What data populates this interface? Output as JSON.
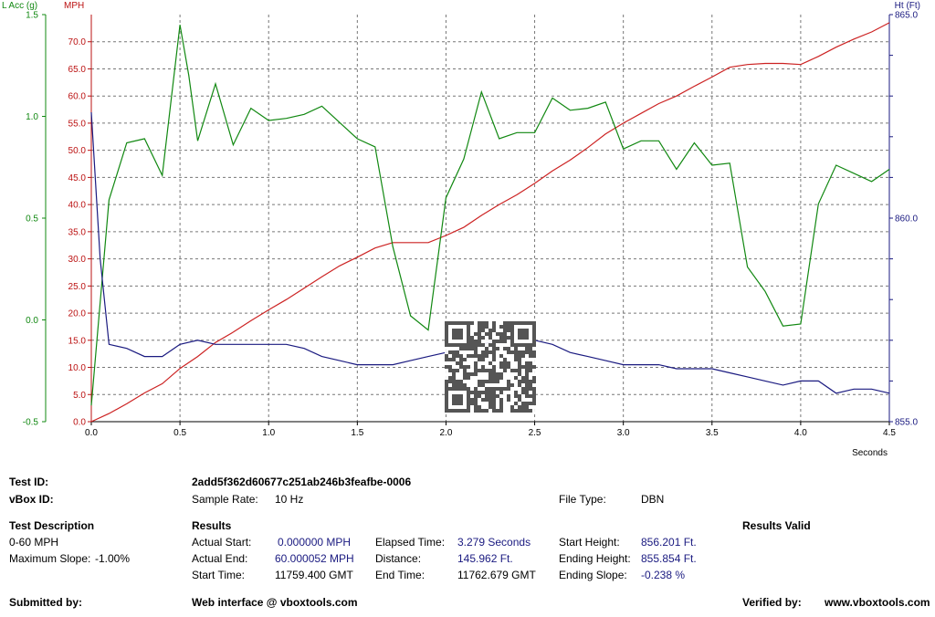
{
  "chart_data": {
    "type": "line",
    "x_label": "Seconds",
    "x_range": [
      0,
      4.5
    ],
    "x_ticks": [
      "0.0",
      "0.5",
      "1.0",
      "1.5",
      "2.0",
      "2.5",
      "3.0",
      "3.5",
      "4.0",
      "4.5"
    ],
    "left_axis_acc": {
      "label": "L Acc (g)",
      "color": "#118811",
      "range": [
        -0.5,
        1.5
      ],
      "ticks": [
        "-0.5",
        "0.0",
        "0.5",
        "1.0",
        "1.5"
      ]
    },
    "left_axis_mph": {
      "label": "MPH",
      "color": "#bb1111",
      "range": [
        0,
        75
      ],
      "ticks": [
        "0.0",
        "5.0",
        "10.0",
        "15.0",
        "20.0",
        "25.0",
        "30.0",
        "35.0",
        "40.0",
        "45.0",
        "50.0",
        "55.0",
        "60.0",
        "65.0",
        "70.0"
      ]
    },
    "right_axis_ht": {
      "label": "Ht (Ft)",
      "color": "#1a1a80",
      "range": [
        855.0,
        865.0
      ],
      "ticks": [
        "855.0",
        "860.0",
        "865.0"
      ]
    },
    "series": [
      {
        "name": "MPH",
        "axis": "mph",
        "color": "#cc2222",
        "x": [
          0,
          0.1,
          0.2,
          0.3,
          0.4,
          0.5,
          0.6,
          0.7,
          0.8,
          0.9,
          1.0,
          1.1,
          1.2,
          1.3,
          1.4,
          1.5,
          1.6,
          1.7,
          1.8,
          1.9,
          2.0,
          2.1,
          2.2,
          2.3,
          2.4,
          2.5,
          2.6,
          2.7,
          2.8,
          2.9,
          3.0,
          3.1,
          3.2,
          3.3,
          3.4,
          3.5,
          3.6,
          3.7,
          3.8,
          3.9,
          4.0,
          4.1,
          4.2,
          4.3,
          4.4,
          4.5
        ],
        "y": [
          0,
          1.5,
          3.3,
          5.3,
          7.0,
          9.8,
          12.0,
          14.6,
          16.5,
          18.6,
          20.6,
          22.5,
          24.6,
          26.7,
          28.7,
          30.3,
          32.0,
          33.0,
          33.0,
          33.0,
          34.3,
          35.8,
          38.0,
          40.0,
          41.8,
          43.9,
          46.2,
          48.2,
          50.5,
          53.0,
          55.0,
          56.8,
          58.6,
          60.0,
          61.8,
          63.5,
          65.3,
          65.8,
          66.0,
          66.0,
          65.8,
          67.3,
          69.0,
          70.5,
          71.8,
          73.5
        ]
      },
      {
        "name": "L Acc (g)",
        "axis": "acc",
        "color": "#118811",
        "x": [
          0,
          0.1,
          0.2,
          0.3,
          0.4,
          0.5,
          0.55,
          0.6,
          0.7,
          0.8,
          0.9,
          1.0,
          1.1,
          1.2,
          1.3,
          1.4,
          1.5,
          1.6,
          1.7,
          1.8,
          1.9,
          2.0,
          2.1,
          2.2,
          2.3,
          2.4,
          2.5,
          2.6,
          2.7,
          2.8,
          2.9,
          3.0,
          3.1,
          3.2,
          3.3,
          3.4,
          3.5,
          3.6,
          3.7,
          3.8,
          3.9,
          4.0,
          4.1,
          4.2,
          4.3,
          4.4,
          4.5
        ],
        "y": [
          -0.42,
          0.59,
          0.87,
          0.89,
          0.71,
          1.45,
          1.2,
          0.88,
          1.16,
          0.86,
          1.04,
          0.98,
          0.99,
          1.01,
          1.05,
          0.97,
          0.89,
          0.85,
          0.36,
          0.02,
          -0.05,
          0.6,
          0.79,
          1.12,
          0.89,
          0.92,
          0.92,
          1.09,
          1.03,
          1.04,
          1.07,
          0.84,
          0.88,
          0.88,
          0.74,
          0.87,
          0.76,
          0.77,
          0.26,
          0.14,
          -0.03,
          -0.02,
          0.57,
          0.76,
          0.72,
          0.68,
          0.74
        ]
      },
      {
        "name": "Ht (Ft)",
        "axis": "ht",
        "color": "#1a1a80",
        "x": [
          0,
          0.05,
          0.1,
          0.2,
          0.3,
          0.4,
          0.5,
          0.6,
          0.7,
          0.8,
          0.9,
          1.0,
          1.1,
          1.2,
          1.3,
          1.4,
          1.5,
          1.6,
          1.7,
          1.8,
          1.9,
          2.0,
          2.1,
          2.2,
          2.3,
          2.4,
          2.5,
          2.6,
          2.7,
          2.8,
          2.9,
          3.0,
          3.1,
          3.2,
          3.3,
          3.4,
          3.5,
          3.6,
          3.7,
          3.8,
          3.9,
          4.0,
          4.1,
          4.2,
          4.3,
          4.4,
          4.5
        ],
        "y": [
          862.6,
          859.0,
          856.9,
          856.8,
          856.6,
          856.6,
          856.9,
          857.0,
          856.9,
          856.9,
          856.9,
          856.9,
          856.9,
          856.8,
          856.6,
          856.5,
          856.4,
          856.4,
          856.4,
          856.5,
          856.6,
          856.7,
          856.8,
          856.9,
          857.0,
          857.0,
          857.0,
          856.9,
          856.7,
          856.6,
          856.5,
          856.4,
          856.4,
          856.4,
          856.3,
          856.3,
          856.3,
          856.2,
          856.1,
          856.0,
          855.9,
          856.0,
          856.0,
          855.7,
          855.8,
          855.8,
          855.7
        ]
      }
    ]
  },
  "info": {
    "test_id_label": "Test ID:",
    "test_id": "2add5f362d60677c251ab246b3feafbe-0006",
    "vbox_id_label": "vBox ID:",
    "sample_rate_label": "Sample Rate:",
    "sample_rate": "10 Hz",
    "file_type_label": "File Type:",
    "file_type": "DBN",
    "test_description_label": "Test Description",
    "test_description": "0-60 MPH",
    "max_slope_label": "Maximum Slope:",
    "max_slope": "-1.00%",
    "results_label": "Results",
    "results_valid": "Results Valid",
    "actual_start_label": "Actual Start:",
    "actual_start": "0.000000 MPH",
    "actual_end_label": "Actual End:",
    "actual_end": "60.000052 MPH",
    "start_time_label": "Start Time:",
    "start_time": "11759.400 GMT",
    "elapsed_label": "Elapsed Time:",
    "elapsed": "3.279 Seconds",
    "distance_label": "Distance:",
    "distance": "145.962 Ft.",
    "end_time_label": "End Time:",
    "end_time": "11762.679 GMT",
    "start_height_label": "Start Height:",
    "start_height": "856.201 Ft.",
    "ending_height_label": "Ending Height:",
    "ending_height": "855.854 Ft.",
    "ending_slope_label": "Ending Slope:",
    "ending_slope": "-0.238 %",
    "submitted_by_label": "Submitted by:",
    "web_interface": "Web interface @ vboxtools.com",
    "verified_by_label": "Verified by:",
    "verified_by": "www.vboxtools.com"
  }
}
